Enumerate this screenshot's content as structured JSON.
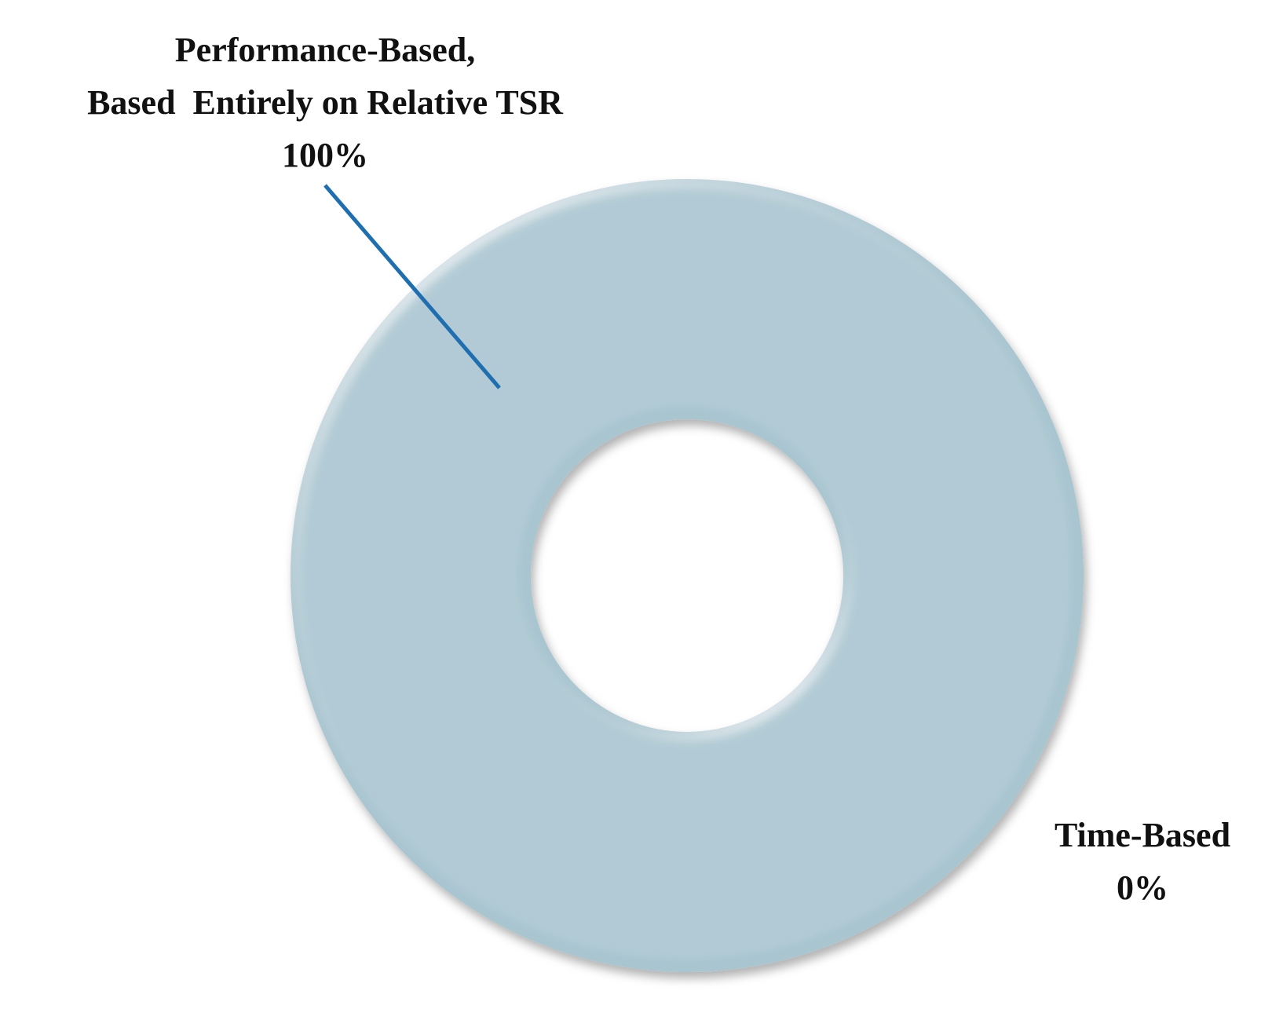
{
  "chart_data": {
    "type": "donut",
    "categories": [
      [
        "Performance-Based,",
        "Based  Entirely on Relative TSR"
      ],
      [
        "Time-Based"
      ]
    ],
    "values": [
      100,
      0
    ],
    "value_labels": [
      "100%",
      "0%"
    ],
    "colors": [
      "#a8c5d0",
      "#7f9fb0"
    ],
    "leader_color": "#1f6fb0"
  }
}
